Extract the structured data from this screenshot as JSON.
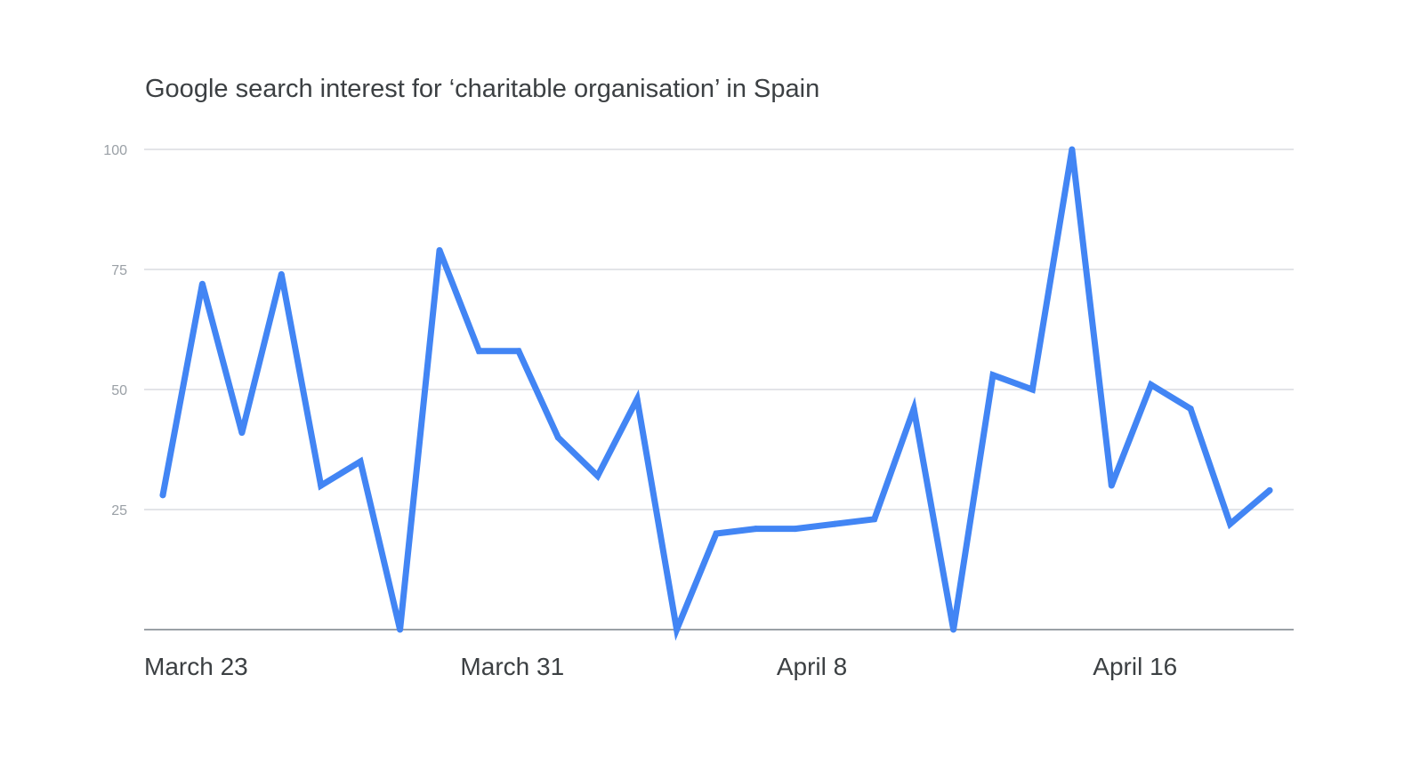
{
  "chart_data": {
    "type": "line",
    "title": "Google search interest for ‘charitable organisation’ in Spain",
    "xlabel": "",
    "ylabel": "",
    "x": [
      "March 23",
      "March 24",
      "March 25",
      "March 26",
      "March 27",
      "March 28",
      "March 29",
      "March 30",
      "March 31",
      "April 1",
      "April 2",
      "April 3",
      "April 4",
      "April 5",
      "April 6",
      "April 7",
      "April 8",
      "April 9",
      "April 10",
      "April 11",
      "April 12",
      "April 13",
      "April 14",
      "April 15",
      "April 16",
      "April 17",
      "April 18",
      "April 19",
      "April 20"
    ],
    "x_tick_labels": [
      "March 23",
      "March 31",
      "April 8",
      "April 16"
    ],
    "x_tick_values": [
      "March 23",
      "March 31",
      "April 8",
      "April 16"
    ],
    "y_ticks": [
      25,
      50,
      75,
      100
    ],
    "ylim": [
      0,
      100
    ],
    "grid": true,
    "series": [
      {
        "values": [
          28,
          72,
          41,
          74,
          30,
          35,
          0,
          79,
          58,
          58,
          40,
          32,
          48,
          0,
          20,
          21,
          21,
          22,
          23,
          46,
          0,
          53,
          50,
          100,
          30,
          51,
          46,
          22,
          29
        ],
        "color": "#4285f4"
      }
    ]
  }
}
